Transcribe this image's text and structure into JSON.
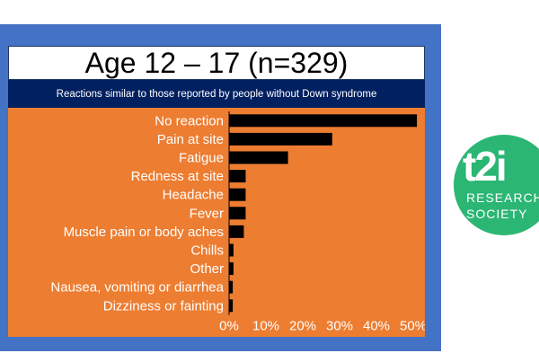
{
  "slide": {
    "title": "Age 12 – 17 (n=329)",
    "subtitle": "Reactions similar to those reported by people without Down syndrome"
  },
  "logo": {
    "main": "t2i",
    "line1": "RESEARCH",
    "line2": "SOCIETY"
  },
  "colors": {
    "slide_bg": "#4472c4",
    "subtitle_bg": "#002060",
    "chart_bg": "#ed7d31",
    "bar": "#000000",
    "logo": "#2bb673"
  },
  "chart_data": {
    "type": "bar",
    "orientation": "horizontal",
    "categories": [
      "No reaction",
      "Pain at site",
      "Fatigue",
      "Redness at site",
      "Headache",
      "Fever",
      "Muscle pain or body aches",
      "Chills",
      "Other",
      "Nausea, vomiting or diarrhea",
      "Dizziness or fainting"
    ],
    "values": [
      51,
      28,
      16,
      4.5,
      4.5,
      4.5,
      4,
      1.2,
      1.2,
      1,
      1
    ],
    "xlim": [
      0,
      50
    ],
    "xticks": [
      "0%",
      "10%",
      "20%",
      "30%",
      "40%",
      "50%"
    ],
    "grid": false,
    "title": "",
    "xlabel": "",
    "ylabel": ""
  }
}
